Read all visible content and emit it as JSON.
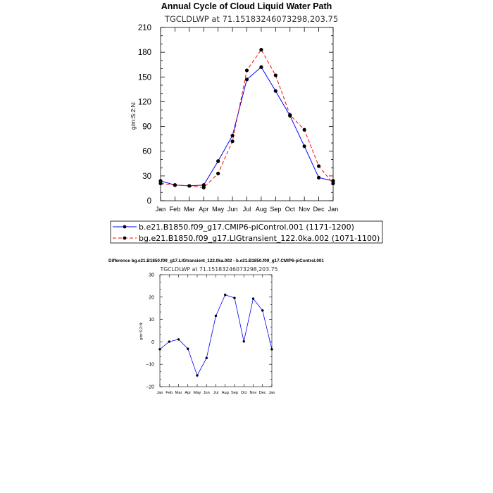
{
  "chart_data": [
    {
      "type": "line",
      "title": "Annual Cycle of Cloud Liquid Water Path",
      "subtitle": "TGCLDLWP  at  71.15183246073298,203.75",
      "xlabel": "",
      "ylabel": "g/m:S:2:N:",
      "categories": [
        "Jan",
        "Feb",
        "Mar",
        "Apr",
        "May",
        "Jun",
        "Jul",
        "Aug",
        "Sep",
        "Oct",
        "Nov",
        "Dec",
        "Jan"
      ],
      "ylim": [
        0,
        210
      ],
      "yticks": [
        "0",
        "30",
        "60",
        "90",
        "120",
        "150",
        "180",
        "210"
      ],
      "grid": false,
      "legend_position": "bottom",
      "series": [
        {
          "name": "b.e21.B1850.f09_g17.CMIP6-piControl.001 (1171-1200)",
          "color": "#0000ff",
          "dash": "solid",
          "values": [
            24,
            19,
            18,
            19,
            48,
            79,
            147,
            162,
            133,
            103,
            66,
            28,
            24
          ]
        },
        {
          "name": "bg.e21.B1850.f09_g17.LIGtransient_122.0ka.002 (1071-1100)",
          "color": "#ff0000",
          "dash": "dashed",
          "values": [
            21,
            19,
            18,
            16,
            33,
            72,
            158,
            183,
            152,
            104,
            86,
            42,
            21
          ]
        }
      ]
    },
    {
      "type": "line",
      "title": "Difference bg.e21.B1850.f09_g17.LIGtransient_122.0ka.002 - b.e21.B1850.f09_g17.CMIP6-piControl.001",
      "subtitle": "TGCLDLWP  at  71.15183246073298,203.75",
      "xlabel": "",
      "ylabel": "g/m:S:2:N:",
      "categories": [
        "Jan",
        "Feb",
        "Mar",
        "Apr",
        "May",
        "Jun",
        "Jul",
        "Aug",
        "Sep",
        "Oct",
        "Nov",
        "Dec",
        "Jan"
      ],
      "ylim": [
        -20,
        30
      ],
      "yticks": [
        "−20",
        "−10",
        "0",
        "10",
        "20",
        "30"
      ],
      "grid": false,
      "series": [
        {
          "color": "#0000ff",
          "dash": "solid",
          "values": [
            -3.3,
            0.1,
            1.1,
            -3.1,
            -15.0,
            -7.2,
            11.6,
            21.0,
            19.6,
            0.2,
            19.3,
            14.0,
            -3.3
          ]
        }
      ]
    }
  ]
}
